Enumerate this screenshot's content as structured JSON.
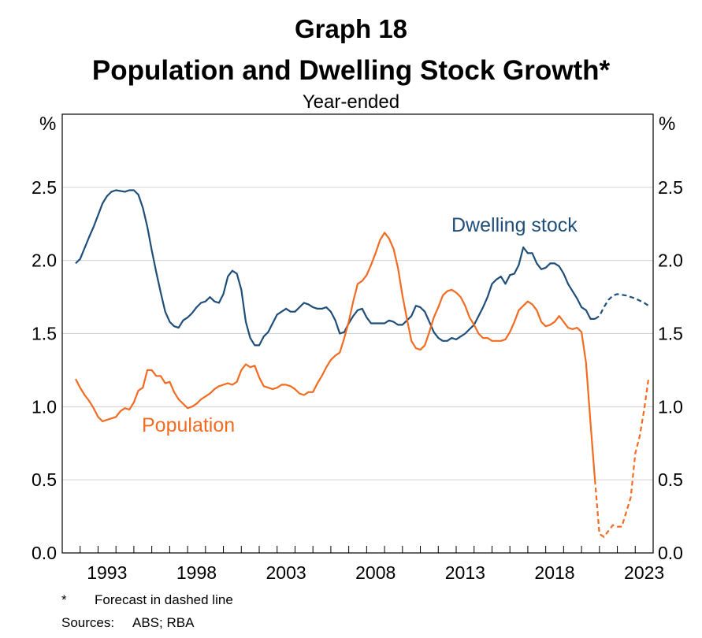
{
  "header": {
    "graph_number": "Graph 18",
    "title": "Population and Dwelling Stock Growth*",
    "subtitle": "Year-ended"
  },
  "footnotes": {
    "star": "*",
    "forecast_note": "Forecast in dashed line",
    "sources_label": "Sources:",
    "sources_text": "ABS; RBA"
  },
  "colors": {
    "dwelling": "#1f4e79",
    "population": "#f26b21",
    "grid": "#d0d0d0"
  },
  "chart_data": {
    "type": "line",
    "title": "Population and Dwelling Stock Growth*",
    "subtitle": "Year-ended",
    "y_unit_left": "%",
    "y_unit_right": "%",
    "ylim": [
      0,
      3
    ],
    "y_ticks": [
      0.0,
      0.5,
      1.0,
      1.5,
      2.0,
      2.5
    ],
    "y_tick_labels": [
      "0.0",
      "0.5",
      "1.0",
      "1.5",
      "2.0",
      "2.5"
    ],
    "xlim": [
      1991,
      2024
    ],
    "x_ticks": [
      1993,
      1998,
      2003,
      2008,
      2013,
      2018,
      2023
    ],
    "x_tick_labels": [
      "1993",
      "1998",
      "2003",
      "2008",
      "2013",
      "2018",
      "2023"
    ],
    "grid": true,
    "legend": "inline labels",
    "series": [
      {
        "name": "Dwelling stock",
        "color": "#1f4e79",
        "actual": [
          [
            1991.75,
            1.98
          ],
          [
            1992.0,
            2.01
          ],
          [
            1992.5,
            2.16
          ],
          [
            1992.75,
            2.23
          ],
          [
            1993.0,
            2.31
          ],
          [
            1993.25,
            2.39
          ],
          [
            1993.5,
            2.44
          ],
          [
            1993.75,
            2.47
          ],
          [
            1994.0,
            2.48
          ],
          [
            1994.5,
            2.47
          ],
          [
            1994.75,
            2.48
          ],
          [
            1995.0,
            2.48
          ],
          [
            1995.25,
            2.45
          ],
          [
            1995.5,
            2.36
          ],
          [
            1995.75,
            2.23
          ],
          [
            1996.0,
            2.07
          ],
          [
            1996.25,
            1.92
          ],
          [
            1996.5,
            1.78
          ],
          [
            1996.75,
            1.65
          ],
          [
            1997.0,
            1.58
          ],
          [
            1997.25,
            1.55
          ],
          [
            1997.5,
            1.54
          ],
          [
            1997.75,
            1.59
          ],
          [
            1998.0,
            1.61
          ],
          [
            1998.25,
            1.64
          ],
          [
            1998.5,
            1.68
          ],
          [
            1998.75,
            1.71
          ],
          [
            1999.0,
            1.72
          ],
          [
            1999.25,
            1.75
          ],
          [
            1999.5,
            1.72
          ],
          [
            1999.75,
            1.71
          ],
          [
            2000.0,
            1.77
          ],
          [
            2000.25,
            1.89
          ],
          [
            2000.5,
            1.93
          ],
          [
            2000.75,
            1.91
          ],
          [
            2001.0,
            1.8
          ],
          [
            2001.25,
            1.58
          ],
          [
            2001.5,
            1.47
          ],
          [
            2001.75,
            1.42
          ],
          [
            2002.0,
            1.42
          ],
          [
            2002.25,
            1.48
          ],
          [
            2002.5,
            1.51
          ],
          [
            2002.75,
            1.57
          ],
          [
            2003.0,
            1.63
          ],
          [
            2003.25,
            1.65
          ],
          [
            2003.5,
            1.67
          ],
          [
            2003.75,
            1.65
          ],
          [
            2004.0,
            1.65
          ],
          [
            2004.25,
            1.68
          ],
          [
            2004.5,
            1.71
          ],
          [
            2004.75,
            1.7
          ],
          [
            2005.0,
            1.68
          ],
          [
            2005.25,
            1.67
          ],
          [
            2005.5,
            1.67
          ],
          [
            2005.75,
            1.68
          ],
          [
            2006.0,
            1.65
          ],
          [
            2006.25,
            1.59
          ],
          [
            2006.5,
            1.5
          ],
          [
            2006.75,
            1.51
          ],
          [
            2007.0,
            1.57
          ],
          [
            2007.25,
            1.62
          ],
          [
            2007.5,
            1.66
          ],
          [
            2007.75,
            1.67
          ],
          [
            2008.0,
            1.61
          ],
          [
            2008.25,
            1.57
          ],
          [
            2008.5,
            1.57
          ],
          [
            2008.75,
            1.57
          ],
          [
            2009.0,
            1.57
          ],
          [
            2009.25,
            1.59
          ],
          [
            2009.5,
            1.58
          ],
          [
            2009.75,
            1.56
          ],
          [
            2010.0,
            1.56
          ],
          [
            2010.25,
            1.59
          ],
          [
            2010.5,
            1.62
          ],
          [
            2010.75,
            1.69
          ],
          [
            2011.0,
            1.68
          ],
          [
            2011.25,
            1.65
          ],
          [
            2011.5,
            1.58
          ],
          [
            2011.75,
            1.51
          ],
          [
            2012.0,
            1.47
          ],
          [
            2012.25,
            1.45
          ],
          [
            2012.5,
            1.45
          ],
          [
            2012.75,
            1.47
          ],
          [
            2013.0,
            1.46
          ],
          [
            2013.25,
            1.48
          ],
          [
            2013.5,
            1.5
          ],
          [
            2013.75,
            1.53
          ],
          [
            2014.0,
            1.56
          ],
          [
            2014.25,
            1.62
          ],
          [
            2014.5,
            1.68
          ],
          [
            2014.75,
            1.75
          ],
          [
            2015.0,
            1.84
          ],
          [
            2015.25,
            1.87
          ],
          [
            2015.5,
            1.89
          ],
          [
            2015.75,
            1.84
          ],
          [
            2016.0,
            1.9
          ],
          [
            2016.25,
            1.91
          ],
          [
            2016.5,
            1.97
          ],
          [
            2016.75,
            2.09
          ],
          [
            2017.0,
            2.05
          ],
          [
            2017.25,
            2.05
          ],
          [
            2017.5,
            1.98
          ],
          [
            2017.75,
            1.94
          ],
          [
            2018.0,
            1.95
          ],
          [
            2018.25,
            1.98
          ],
          [
            2018.5,
            1.98
          ],
          [
            2018.75,
            1.96
          ],
          [
            2019.0,
            1.91
          ],
          [
            2019.25,
            1.84
          ],
          [
            2019.5,
            1.79
          ],
          [
            2019.75,
            1.74
          ],
          [
            2020.0,
            1.68
          ],
          [
            2020.25,
            1.66
          ],
          [
            2020.5,
            1.6
          ],
          [
            2020.75,
            1.6
          ]
        ],
        "forecast": [
          [
            2020.75,
            1.6
          ],
          [
            2021.0,
            1.62
          ],
          [
            2021.25,
            1.68
          ],
          [
            2021.5,
            1.73
          ],
          [
            2021.75,
            1.76
          ],
          [
            2022.0,
            1.77
          ],
          [
            2022.5,
            1.76
          ],
          [
            2023.0,
            1.74
          ],
          [
            2023.5,
            1.71
          ],
          [
            2023.75,
            1.69
          ]
        ]
      },
      {
        "name": "Population",
        "color": "#f26b21",
        "actual": [
          [
            1991.75,
            1.19
          ],
          [
            1992.0,
            1.13
          ],
          [
            1992.25,
            1.08
          ],
          [
            1992.5,
            1.04
          ],
          [
            1992.75,
            0.99
          ],
          [
            1993.0,
            0.93
          ],
          [
            1993.25,
            0.9
          ],
          [
            1993.5,
            0.91
          ],
          [
            1993.75,
            0.92
          ],
          [
            1994.0,
            0.93
          ],
          [
            1994.25,
            0.97
          ],
          [
            1994.5,
            0.99
          ],
          [
            1994.75,
            0.98
          ],
          [
            1995.0,
            1.03
          ],
          [
            1995.25,
            1.11
          ],
          [
            1995.5,
            1.13
          ],
          [
            1995.75,
            1.25
          ],
          [
            1996.0,
            1.25
          ],
          [
            1996.25,
            1.21
          ],
          [
            1996.5,
            1.21
          ],
          [
            1996.75,
            1.16
          ],
          [
            1997.0,
            1.17
          ],
          [
            1997.25,
            1.1
          ],
          [
            1997.5,
            1.05
          ],
          [
            1997.75,
            1.02
          ],
          [
            1998.0,
            0.99
          ],
          [
            1998.25,
            1.0
          ],
          [
            1998.5,
            1.02
          ],
          [
            1998.75,
            1.05
          ],
          [
            1999.0,
            1.07
          ],
          [
            1999.25,
            1.09
          ],
          [
            1999.5,
            1.12
          ],
          [
            1999.75,
            1.14
          ],
          [
            2000.0,
            1.15
          ],
          [
            2000.25,
            1.16
          ],
          [
            2000.5,
            1.15
          ],
          [
            2000.75,
            1.17
          ],
          [
            2001.0,
            1.25
          ],
          [
            2001.25,
            1.29
          ],
          [
            2001.5,
            1.27
          ],
          [
            2001.75,
            1.28
          ],
          [
            2002.0,
            1.2
          ],
          [
            2002.25,
            1.14
          ],
          [
            2002.5,
            1.13
          ],
          [
            2002.75,
            1.12
          ],
          [
            2003.0,
            1.13
          ],
          [
            2003.25,
            1.15
          ],
          [
            2003.5,
            1.15
          ],
          [
            2003.75,
            1.14
          ],
          [
            2004.0,
            1.12
          ],
          [
            2004.25,
            1.09
          ],
          [
            2004.5,
            1.08
          ],
          [
            2004.75,
            1.1
          ],
          [
            2005.0,
            1.1
          ],
          [
            2005.25,
            1.16
          ],
          [
            2005.5,
            1.21
          ],
          [
            2005.75,
            1.27
          ],
          [
            2006.0,
            1.32
          ],
          [
            2006.25,
            1.35
          ],
          [
            2006.5,
            1.37
          ],
          [
            2006.75,
            1.47
          ],
          [
            2007.0,
            1.58
          ],
          [
            2007.25,
            1.72
          ],
          [
            2007.5,
            1.84
          ],
          [
            2007.75,
            1.86
          ],
          [
            2008.0,
            1.9
          ],
          [
            2008.25,
            1.97
          ],
          [
            2008.5,
            2.05
          ],
          [
            2008.75,
            2.14
          ],
          [
            2009.0,
            2.19
          ],
          [
            2009.25,
            2.15
          ],
          [
            2009.5,
            2.08
          ],
          [
            2009.75,
            1.95
          ],
          [
            2010.0,
            1.76
          ],
          [
            2010.25,
            1.6
          ],
          [
            2010.5,
            1.45
          ],
          [
            2010.75,
            1.4
          ],
          [
            2011.0,
            1.39
          ],
          [
            2011.25,
            1.42
          ],
          [
            2011.5,
            1.51
          ],
          [
            2011.75,
            1.61
          ],
          [
            2012.0,
            1.68
          ],
          [
            2012.25,
            1.76
          ],
          [
            2012.5,
            1.79
          ],
          [
            2012.75,
            1.8
          ],
          [
            2013.0,
            1.78
          ],
          [
            2013.25,
            1.75
          ],
          [
            2013.5,
            1.69
          ],
          [
            2013.75,
            1.61
          ],
          [
            2014.0,
            1.56
          ],
          [
            2014.25,
            1.5
          ],
          [
            2014.5,
            1.47
          ],
          [
            2014.75,
            1.47
          ],
          [
            2015.0,
            1.45
          ],
          [
            2015.25,
            1.45
          ],
          [
            2015.5,
            1.45
          ],
          [
            2015.75,
            1.46
          ],
          [
            2016.0,
            1.51
          ],
          [
            2016.25,
            1.58
          ],
          [
            2016.5,
            1.66
          ],
          [
            2016.75,
            1.69
          ],
          [
            2017.0,
            1.72
          ],
          [
            2017.25,
            1.7
          ],
          [
            2017.5,
            1.66
          ],
          [
            2017.75,
            1.58
          ],
          [
            2018.0,
            1.55
          ],
          [
            2018.25,
            1.56
          ],
          [
            2018.5,
            1.58
          ],
          [
            2018.75,
            1.62
          ],
          [
            2019.0,
            1.58
          ],
          [
            2019.25,
            1.54
          ],
          [
            2019.5,
            1.53
          ],
          [
            2019.75,
            1.54
          ],
          [
            2020.0,
            1.51
          ],
          [
            2020.25,
            1.3
          ],
          [
            2020.5,
            0.89
          ],
          [
            2020.75,
            0.5
          ]
        ],
        "forecast": [
          [
            2020.75,
            0.5
          ],
          [
            2021.0,
            0.13
          ],
          [
            2021.25,
            0.11
          ],
          [
            2021.5,
            0.15
          ],
          [
            2021.75,
            0.19
          ],
          [
            2022.0,
            0.18
          ],
          [
            2022.25,
            0.18
          ],
          [
            2022.5,
            0.28
          ],
          [
            2022.75,
            0.38
          ],
          [
            2023.0,
            0.68
          ],
          [
            2023.25,
            0.8
          ],
          [
            2023.5,
            0.98
          ],
          [
            2023.75,
            1.2
          ]
        ]
      }
    ],
    "annotations": [
      {
        "text": "Dwelling stock",
        "series": "Dwelling stock"
      },
      {
        "text": "Population",
        "series": "Population"
      }
    ]
  }
}
